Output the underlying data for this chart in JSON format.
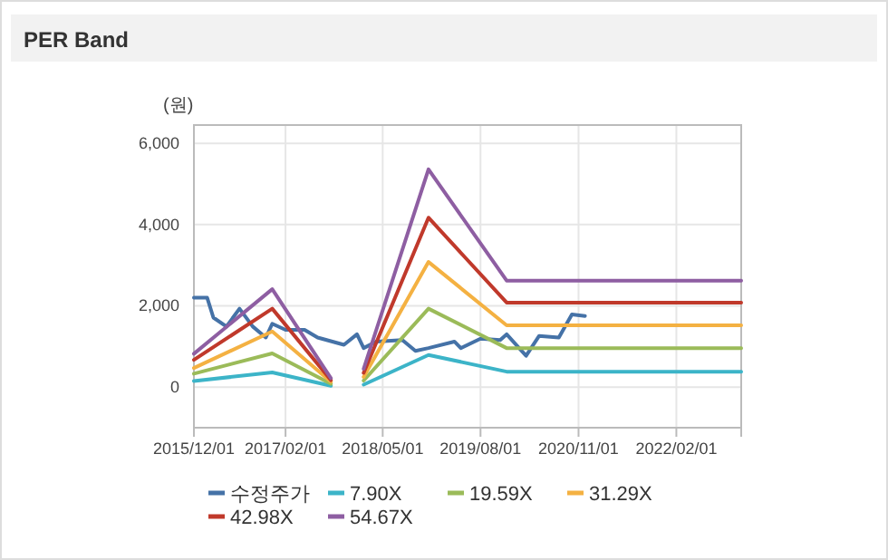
{
  "chart_data": {
    "type": "line",
    "title": "PER Band",
    "ylabel": "(원)",
    "xlim": [
      "2015-12-01",
      "2022-12-01"
    ],
    "xticks": [
      {
        "value": "2015-12-01",
        "label": "2015/12/01"
      },
      {
        "value": "2017-02-01",
        "label": "2017/02/01"
      },
      {
        "value": "2018-05-01",
        "label": "2018/05/01"
      },
      {
        "value": "2019-08-01",
        "label": "2019/08/01"
      },
      {
        "value": "2020-11-01",
        "label": "2020/11/01"
      },
      {
        "value": "2022-02-01",
        "label": "2022/02/01"
      }
    ],
    "ylim": [
      -1000,
      6450
    ],
    "yticks": [
      0,
      {
        "value": 2000,
        "label": "2,000"
      },
      {
        "value": 4000,
        "label": "4,000"
      },
      {
        "value": 6000,
        "label": "6,000"
      }
    ],
    "grid": true,
    "legend": "bottom",
    "marker": "none",
    "line_style": "solid",
    "series": [
      {
        "name": "수정주가",
        "color": "#4572a7",
        "x": [
          "2015-12",
          "2016-02",
          "2016-03",
          "2016-05",
          "2016-07",
          "2016-09",
          "2016-11",
          "2016-12",
          "2017-02",
          "2017-05",
          "2017-07",
          "2017-11",
          "2018-01",
          "2018-02",
          "2018-04",
          "2018-08",
          "2018-10",
          "2018-12",
          "2019-04",
          "2019-05",
          "2019-08",
          "2019-11",
          "2019-12",
          "2020-03",
          "2020-05",
          "2020-08",
          "2020-10",
          "2020-12"
        ],
        "values": [
          2200,
          2200,
          1710,
          1490,
          1930,
          1490,
          1220,
          1560,
          1410,
          1410,
          1220,
          1040,
          1300,
          960,
          1120,
          1160,
          890,
          960,
          1120,
          960,
          1190,
          1160,
          1300,
          770,
          1260,
          1220,
          1790,
          1750
        ]
      },
      {
        "name": "7.90X",
        "color": "#3cb4c8",
        "x": [
          "2015-12",
          "2016-12",
          "2017-09",
          "2017-12",
          "2018-02",
          "2018-12",
          "2019-12",
          "2022-12"
        ],
        "values": [
          150,
          360,
          30,
          null,
          60,
          790,
          380,
          380
        ]
      },
      {
        "name": "19.59X",
        "color": "#9bbb59",
        "x": [
          "2015-12",
          "2016-12",
          "2017-09",
          "2017-12",
          "2018-02",
          "2018-12",
          "2019-12",
          "2022-12"
        ],
        "values": [
          330,
          830,
          80,
          null,
          160,
          1930,
          960,
          960
        ]
      },
      {
        "name": "31.29X",
        "color": "#f4b142",
        "x": [
          "2015-12",
          "2016-12",
          "2017-09",
          "2017-12",
          "2018-02",
          "2018-12",
          "2019-12",
          "2022-12"
        ],
        "values": [
          470,
          1370,
          130,
          null,
          250,
          3080,
          1520,
          1520
        ]
      },
      {
        "name": "42.98X",
        "color": "#c0392b",
        "x": [
          "2015-12",
          "2016-12",
          "2017-09",
          "2017-12",
          "2018-02",
          "2018-12",
          "2019-12",
          "2022-12"
        ],
        "values": [
          670,
          1930,
          170,
          null,
          350,
          4170,
          2080,
          2080
        ]
      },
      {
        "name": "54.67X",
        "color": "#8e5ea2",
        "x": [
          "2015-12",
          "2016-12",
          "2017-09",
          "2017-12",
          "2018-02",
          "2018-12",
          "2019-12",
          "2022-12"
        ],
        "values": [
          820,
          2410,
          220,
          null,
          450,
          5360,
          2620,
          2620
        ]
      }
    ]
  }
}
